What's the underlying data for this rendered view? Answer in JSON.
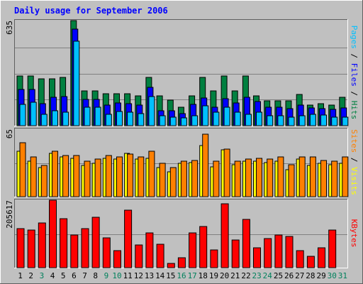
{
  "chart_data": {
    "type": "bar",
    "title": "Daily usage for September 2006",
    "categories": [
      "1",
      "2",
      "3",
      "4",
      "5",
      "6",
      "7",
      "8",
      "9",
      "10",
      "11",
      "12",
      "13",
      "14",
      "15",
      "16",
      "17",
      "18",
      "19",
      "20",
      "21",
      "22",
      "23",
      "24",
      "25",
      "26",
      "27",
      "28",
      "29",
      "30",
      "31"
    ],
    "weekend_categories": [
      "3",
      "9",
      "10",
      "16",
      "17",
      "23",
      "24",
      "30",
      "31"
    ],
    "colors": {
      "hits": "#008040",
      "files": "#0000FF",
      "pages": "#00C0FF",
      "visits": "#FFFF00",
      "sites": "#FF8000",
      "kbytes": "#FF0000",
      "title": "#0000FF",
      "weekday_label": "#000000",
      "weekend_label": "#00805C",
      "background": "#C0C0C0",
      "grid": "#808080"
    },
    "panels": [
      {
        "name": "hits-files-pages",
        "axis_max_label": "635",
        "ylim": [
          0,
          635
        ],
        "label_parts": [
          "Pages",
          "Files",
          "Hits"
        ],
        "label_separator": " / ",
        "series": [
          {
            "name": "Hits",
            "values": [
              302,
              302,
              282,
              282,
              290,
              635,
              210,
              210,
              192,
              192,
              192,
              182,
              290,
              182,
              155,
              112,
              182,
              290,
              210,
              302,
              210,
              302,
              182,
              151,
              151,
              151,
              190,
              125,
              135,
              125,
              170
            ]
          },
          {
            "name": "Files",
            "values": [
              219,
              219,
              132,
              170,
              175,
              585,
              157,
              157,
              125,
              137,
              132,
              125,
              230,
              92,
              92,
              73,
              127,
              167,
              112,
              161,
              136,
              170,
              145,
              112,
              113,
              103,
              125,
              107,
              102,
              97,
              106
            ]
          },
          {
            "name": "Pages",
            "values": [
              128,
              140,
              70,
              90,
              83,
              512,
              110,
              110,
              70,
              85,
              80,
              75,
              175,
              60,
              50,
              46,
              60,
              120,
              83,
              112,
              80,
              70,
              80,
              60,
              60,
              50,
              60,
              70,
              66,
              52,
              50
            ]
          }
        ]
      },
      {
        "name": "visits-sites",
        "axis_max_label": "65",
        "ylim": [
          0,
          65
        ],
        "label_parts": [
          "Sites",
          "Visits"
        ],
        "label_separator": " / ",
        "series": [
          {
            "name": "Visits",
            "values": [
              44,
              34,
              28,
              42,
              38,
              37,
              30,
              32,
              37,
              36,
              42,
              36,
              37,
              28,
              24,
              32,
              33,
              49,
              29,
              45,
              31,
              34,
              34,
              33,
              34,
              26,
              36,
              30,
              32,
              31,
              32
            ]
          },
          {
            "name": "Sites",
            "values": [
              52,
              38,
              30,
              44,
              40,
              40,
              34,
              36,
              40,
              38,
              41,
              38,
              44,
              32,
              28,
              34,
              35,
              60,
              34,
              46,
              34,
              36,
              37,
              36,
              38,
              31,
              38,
              38,
              35,
              34,
              38
            ]
          }
        ]
      },
      {
        "name": "kbytes",
        "axis_max_label": "205617",
        "ylim": [
          0,
          205617
        ],
        "label_parts": [
          "KBytes"
        ],
        "label_separator": "",
        "series": [
          {
            "name": "KBytes",
            "values": [
              120000,
              115000,
              137000,
              205617,
              150000,
              100000,
              118000,
              153000,
              90000,
              53000,
              175000,
              70000,
              107000,
              72000,
              14000,
              30000,
              105000,
              125000,
              55000,
              195000,
              85000,
              147000,
              60000,
              88000,
              100000,
              95000,
              52000,
              35000,
              60000,
              115000,
              0
            ]
          }
        ]
      }
    ]
  }
}
